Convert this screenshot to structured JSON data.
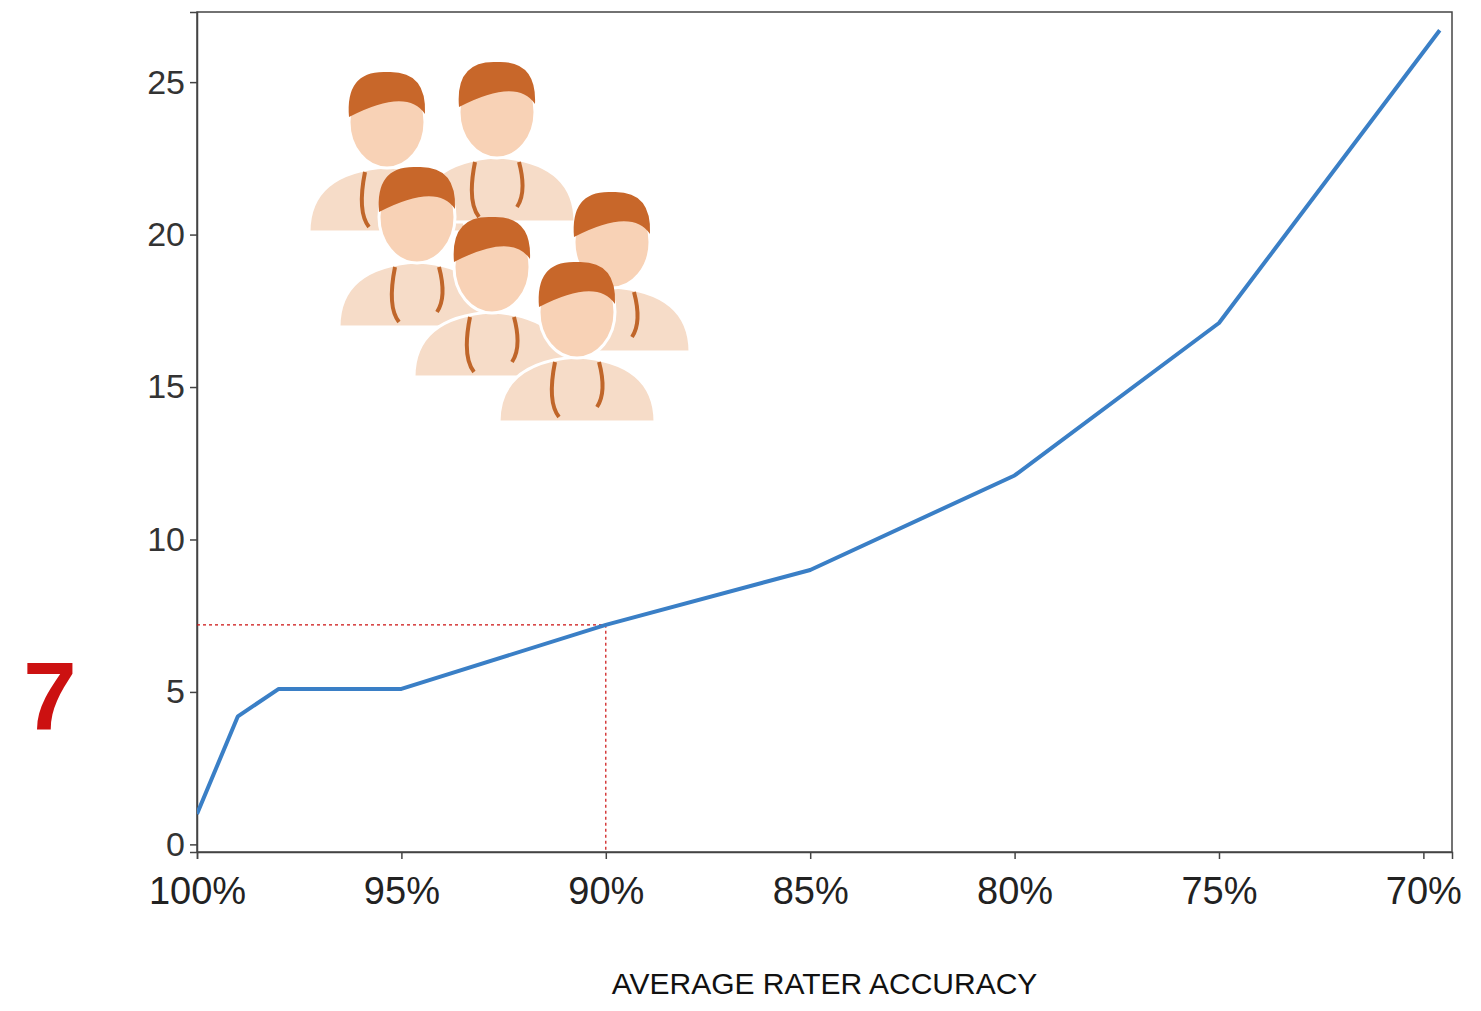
{
  "chart_data": {
    "type": "line",
    "x_label": "AVERAGE RATER ACCURACY",
    "x": [
      100,
      99,
      98,
      95,
      90,
      85,
      80,
      75,
      69.6
    ],
    "values": [
      1,
      4.2,
      5.1,
      5.1,
      7.2,
      9,
      12.1,
      17.1,
      26.7
    ],
    "color": "#3a7fc6",
    "xlim": [
      100,
      69.3
    ],
    "xticks": [
      {
        "value": 100,
        "label": "100%"
      },
      {
        "value": 95,
        "label": "95%"
      },
      {
        "value": 90,
        "label": "90%"
      },
      {
        "value": 85,
        "label": "85%"
      },
      {
        "value": 80,
        "label": "80%"
      },
      {
        "value": 75,
        "label": "75%"
      },
      {
        "value": 70,
        "label": "70%"
      }
    ],
    "ylim": [
      -0.25,
      27.3
    ],
    "yticks": [
      0,
      5,
      10,
      15,
      20,
      25
    ],
    "grid": false,
    "annotations": [
      {
        "text": "7",
        "x": 90,
        "y": 7.2,
        "color": "#cc1111"
      }
    ]
  }
}
